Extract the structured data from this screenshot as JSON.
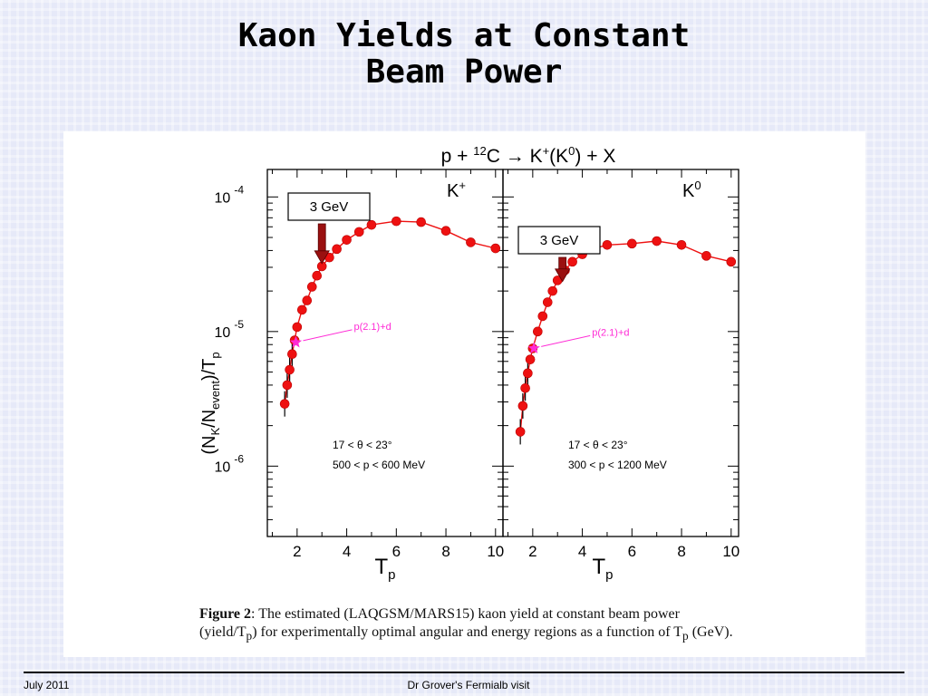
{
  "slide": {
    "title_line1": "Kaon Yields at Constant",
    "title_line2": "Beam Power",
    "footer_date": "July 2011",
    "footer_center": "Dr Grover's Fermialb visit"
  },
  "caption": {
    "figure_label": "Figure 2",
    "line1": ": The estimated (LAQGSM/MARS15) kaon yield at constant beam power",
    "line2": "(yield/T",
    "line2_sub": "p",
    "line2_rest": ")  for experimentally optimal angular and energy regions as a function of T",
    "line2_sub2": "p",
    "line2_end": " (GeV)."
  },
  "chart_data": [
    {
      "type": "scatter",
      "panel_label": "K+",
      "reaction": "p + 12C → K+(K0) + X",
      "ylabel": "(NK/Nevent)/Tp",
      "xlabel": "Tp",
      "y_scale": "log",
      "xlim": [
        0.8,
        10.3
      ],
      "ylim": [
        3e-07,
        0.00016
      ],
      "x_ticks": [
        2,
        4,
        6,
        8,
        10
      ],
      "y_tick_labels": [
        {
          "base": "10",
          "exp": "-4",
          "value": 0.0001
        },
        {
          "base": "10",
          "exp": "-5",
          "value": 1e-05
        },
        {
          "base": "10",
          "exp": "-6",
          "value": 1e-06
        }
      ],
      "color": "#ee1111",
      "points": [
        {
          "x": 1.5,
          "y": 2.9e-06
        },
        {
          "x": 1.6,
          "y": 4e-06
        },
        {
          "x": 1.7,
          "y": 5.2e-06
        },
        {
          "x": 1.8,
          "y": 6.8e-06
        },
        {
          "x": 1.9,
          "y": 8.6e-06
        },
        {
          "x": 2.0,
          "y": 1.08e-05
        },
        {
          "x": 2.2,
          "y": 1.45e-05
        },
        {
          "x": 2.4,
          "y": 1.7e-05
        },
        {
          "x": 2.6,
          "y": 2.15e-05
        },
        {
          "x": 2.8,
          "y": 2.6e-05
        },
        {
          "x": 3.0,
          "y": 3.05e-05
        },
        {
          "x": 3.3,
          "y": 3.55e-05
        },
        {
          "x": 3.6,
          "y": 4.1e-05
        },
        {
          "x": 4.0,
          "y": 4.8e-05
        },
        {
          "x": 4.5,
          "y": 5.5e-05
        },
        {
          "x": 5.0,
          "y": 6.2e-05
        },
        {
          "x": 6.0,
          "y": 6.6e-05
        },
        {
          "x": 7.0,
          "y": 6.5e-05
        },
        {
          "x": 8.0,
          "y": 5.6e-05
        },
        {
          "x": 9.0,
          "y": 4.6e-05
        },
        {
          "x": 10.0,
          "y": 4.15e-05
        }
      ],
      "special_point": {
        "x": 1.95,
        "y": 8.3e-06,
        "label": "p(2.1)+d",
        "color": "#ff2bd6"
      },
      "arrow": {
        "x": 3.0,
        "label": "3 GeV"
      },
      "annotation_lines": [
        "17 < θ < 23°",
        "500 < p < 600 MeV"
      ]
    },
    {
      "type": "scatter",
      "panel_label": "K0",
      "xlabel": "Tp",
      "y_scale": "log",
      "xlim": [
        0.8,
        10.3
      ],
      "ylim": [
        3e-07,
        0.00016
      ],
      "x_ticks": [
        2,
        4,
        6,
        8,
        10
      ],
      "color": "#ee1111",
      "points": [
        {
          "x": 1.5,
          "y": 1.8e-06
        },
        {
          "x": 1.6,
          "y": 2.8e-06
        },
        {
          "x": 1.7,
          "y": 3.8e-06
        },
        {
          "x": 1.8,
          "y": 4.9e-06
        },
        {
          "x": 1.9,
          "y": 6.2e-06
        },
        {
          "x": 2.0,
          "y": 7.5e-06
        },
        {
          "x": 2.2,
          "y": 1e-05
        },
        {
          "x": 2.4,
          "y": 1.3e-05
        },
        {
          "x": 2.6,
          "y": 1.65e-05
        },
        {
          "x": 2.8,
          "y": 2e-05
        },
        {
          "x": 3.0,
          "y": 2.4e-05
        },
        {
          "x": 3.3,
          "y": 2.85e-05
        },
        {
          "x": 3.6,
          "y": 3.3e-05
        },
        {
          "x": 4.0,
          "y": 3.75e-05
        },
        {
          "x": 4.5,
          "y": 4.15e-05
        },
        {
          "x": 5.0,
          "y": 4.4e-05
        },
        {
          "x": 6.0,
          "y": 4.5e-05
        },
        {
          "x": 7.0,
          "y": 4.7e-05
        },
        {
          "x": 8.0,
          "y": 4.4e-05
        },
        {
          "x": 9.0,
          "y": 3.65e-05
        },
        {
          "x": 10.0,
          "y": 3.3e-05
        }
      ],
      "special_point": {
        "x": 2.05,
        "y": 7.5e-06,
        "label": "p(2.1)+d",
        "color": "#ff2bd6"
      },
      "arrow": {
        "x": 3.2,
        "label": "3 GeV"
      },
      "annotation_lines": [
        "17 < θ < 23°",
        "300 < p < 1200 MeV"
      ]
    }
  ]
}
